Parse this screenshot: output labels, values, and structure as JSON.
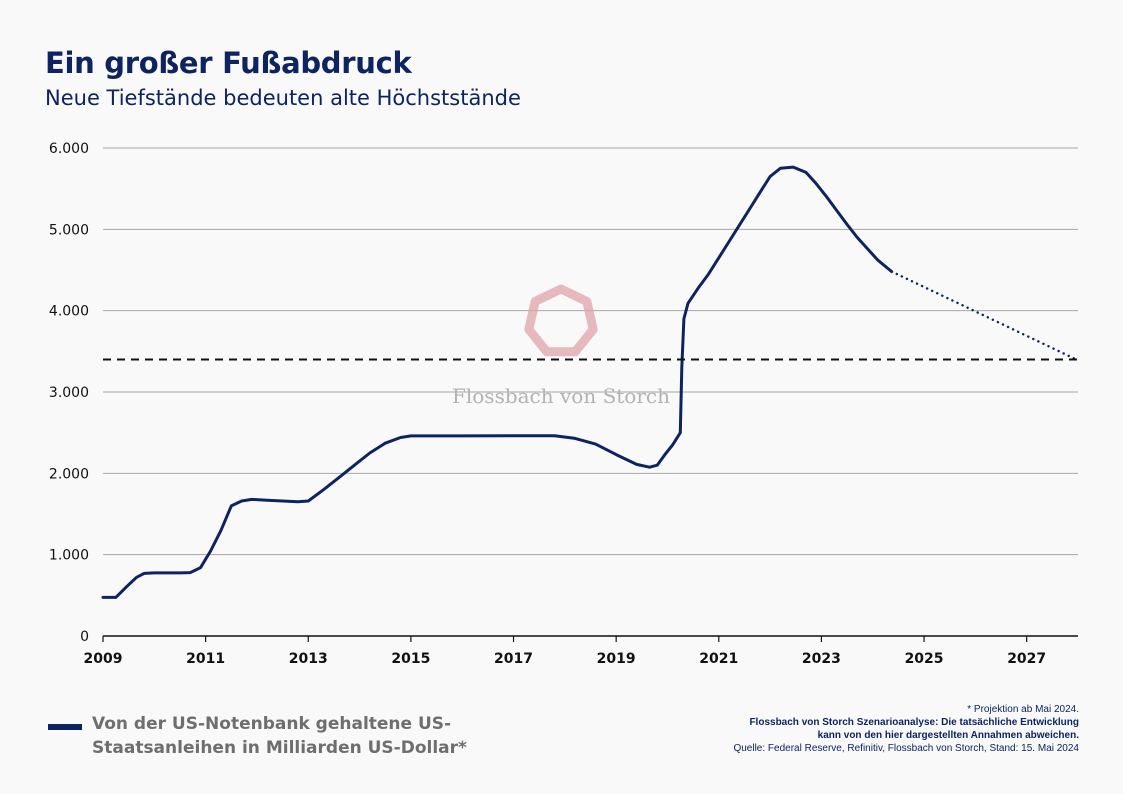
{
  "header": {
    "title": "Ein großer Fußabdruck",
    "subtitle": "Neue Tiefstände bedeuten alte Höchststände"
  },
  "watermark": {
    "text": "Flossbach von Storch"
  },
  "legend": {
    "label": "Von der US-Notenbank gehaltene US-Staatsanleihen in Milliarden US-Dollar*"
  },
  "notes": {
    "projection": "* Projektion ab Mai 2024.",
    "scenario_line1": "Flossbach von Storch Szenarioanalyse: Die tatsächliche Entwicklung",
    "scenario_line2": "kann von den hier dargestellten Annahmen abweichen.",
    "source": "Quelle: Federal Reserve, Refinitiv, Flossbach von Storch, Stand: 15. Mai 2024"
  },
  "colors": {
    "series": "#0d2461",
    "grid": "#a8a8a8",
    "watermark_logo": "#dea3a8",
    "watermark_text": "#b3b3b3",
    "background": "#f9f9f9"
  },
  "chart_data": {
    "type": "line",
    "xlim": [
      2009,
      2028
    ],
    "ylim": [
      0,
      6000
    ],
    "x_ticks": [
      2009,
      2011,
      2013,
      2015,
      2017,
      2019,
      2021,
      2023,
      2025,
      2027
    ],
    "x_tick_labels": [
      "2009",
      "2011",
      "2013",
      "2015",
      "2017",
      "2019",
      "2021",
      "2023",
      "2025",
      "2027"
    ],
    "y_ticks": [
      0,
      1000,
      2000,
      3000,
      4000,
      5000,
      6000
    ],
    "y_tick_labels": [
      "0",
      "1.000",
      "2.000",
      "3.000",
      "4.000",
      "5.000",
      "6.000"
    ],
    "grid": "horizontal",
    "series": [
      {
        "name": "Von der US-Notenbank gehaltene US-Staatsanleihen in Milliarden US-Dollar*",
        "style": "solid",
        "points": [
          [
            2009.0,
            475
          ],
          [
            2009.25,
            475
          ],
          [
            2009.45,
            600
          ],
          [
            2009.65,
            720
          ],
          [
            2009.8,
            770
          ],
          [
            2010.0,
            776
          ],
          [
            2010.5,
            776
          ],
          [
            2010.7,
            780
          ],
          [
            2010.9,
            840
          ],
          [
            2011.1,
            1050
          ],
          [
            2011.3,
            1300
          ],
          [
            2011.5,
            1600
          ],
          [
            2011.7,
            1660
          ],
          [
            2011.9,
            1680
          ],
          [
            2012.2,
            1670
          ],
          [
            2012.5,
            1660
          ],
          [
            2012.8,
            1650
          ],
          [
            2013.0,
            1660
          ],
          [
            2013.3,
            1800
          ],
          [
            2013.6,
            1950
          ],
          [
            2013.9,
            2100
          ],
          [
            2014.2,
            2250
          ],
          [
            2014.5,
            2370
          ],
          [
            2014.8,
            2440
          ],
          [
            2015.0,
            2460
          ],
          [
            2016.0,
            2460
          ],
          [
            2017.0,
            2462
          ],
          [
            2017.8,
            2462
          ],
          [
            2018.2,
            2430
          ],
          [
            2018.6,
            2360
          ],
          [
            2019.0,
            2230
          ],
          [
            2019.4,
            2110
          ],
          [
            2019.65,
            2075
          ],
          [
            2019.8,
            2100
          ],
          [
            2019.95,
            2230
          ],
          [
            2020.1,
            2350
          ],
          [
            2020.25,
            2500
          ],
          [
            2020.28,
            3300
          ],
          [
            2020.32,
            3900
          ],
          [
            2020.4,
            4090
          ],
          [
            2020.6,
            4280
          ],
          [
            2020.8,
            4450
          ],
          [
            2021.0,
            4650
          ],
          [
            2021.2,
            4850
          ],
          [
            2021.4,
            5050
          ],
          [
            2021.6,
            5250
          ],
          [
            2021.8,
            5450
          ],
          [
            2022.0,
            5650
          ],
          [
            2022.2,
            5750
          ],
          [
            2022.45,
            5765
          ],
          [
            2022.7,
            5700
          ],
          [
            2022.9,
            5560
          ],
          [
            2023.1,
            5400
          ],
          [
            2023.3,
            5230
          ],
          [
            2023.5,
            5060
          ],
          [
            2023.7,
            4900
          ],
          [
            2023.9,
            4760
          ],
          [
            2024.1,
            4620
          ],
          [
            2024.37,
            4480
          ]
        ]
      },
      {
        "name": "Projektion",
        "style": "dotted",
        "points": [
          [
            2024.37,
            4480
          ],
          [
            2028.0,
            3390
          ]
        ]
      },
      {
        "name": "Referenzlinie",
        "style": "dashed",
        "points": [
          [
            2009.0,
            3400
          ],
          [
            2028.0,
            3400
          ]
        ]
      }
    ]
  }
}
